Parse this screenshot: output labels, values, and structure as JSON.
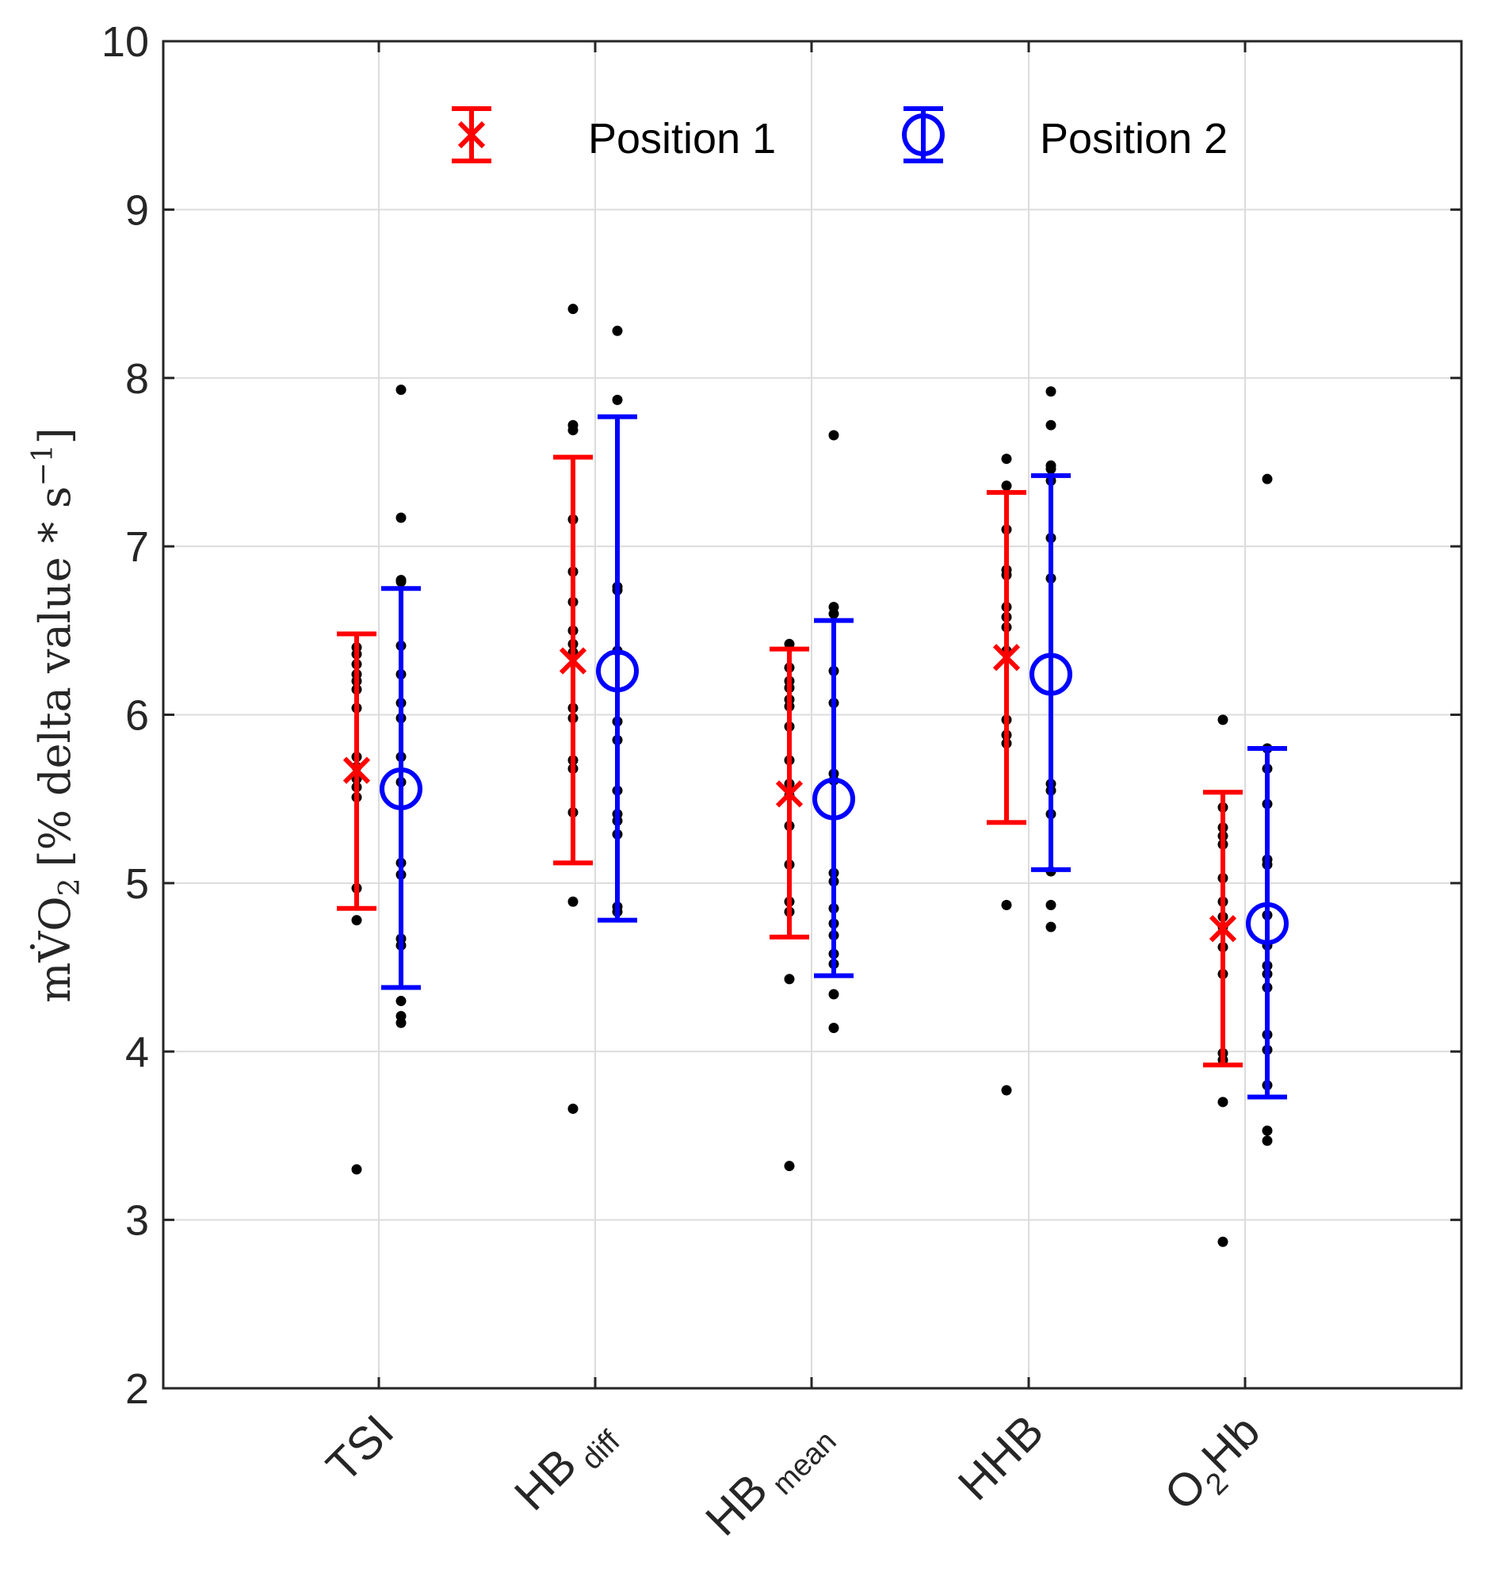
{
  "chart_data": {
    "type": "scatter",
    "title": "",
    "xlabel": "",
    "ylabel": {
      "main": "mV̇O",
      "sub": "2",
      "unit": "[% delta value * s",
      "sup": "−1",
      "close": "]"
    },
    "ylim": [
      2,
      10
    ],
    "yticks": [
      "2",
      "3",
      "4",
      "5",
      "6",
      "7",
      "8",
      "9",
      "10"
    ],
    "grid": true,
    "legend_position": "top",
    "categories": [
      {
        "main": "TSI",
        "sub": ""
      },
      {
        "main": "HB",
        "sub": "diff"
      },
      {
        "main": "HB",
        "sub": "mean"
      },
      {
        "main": "HHB",
        "sub": ""
      },
      {
        "main": "O",
        "sub": "2",
        "rest": "Hb"
      }
    ],
    "series": [
      {
        "name": "Position 1",
        "color": "#ff0000",
        "marker": "x",
        "mean": [
          5.67,
          6.32,
          5.53,
          6.34,
          4.73
        ],
        "lower": [
          4.85,
          5.12,
          4.68,
          5.36,
          3.92
        ],
        "upper": [
          6.48,
          7.53,
          6.39,
          7.32,
          5.54
        ],
        "points": [
          [
            3.3,
            4.78,
            4.97,
            5.51,
            5.57,
            5.62,
            5.69,
            5.75,
            6.04,
            6.15,
            6.2,
            6.24,
            6.3,
            6.36,
            6.4
          ],
          [
            3.66,
            4.89,
            5.42,
            5.68,
            5.73,
            5.98,
            6.04,
            6.37,
            6.42,
            6.5,
            6.67,
            6.85,
            7.16,
            7.69,
            7.72,
            8.41
          ],
          [
            3.32,
            4.43,
            4.83,
            4.89,
            5.11,
            5.34,
            5.52,
            5.59,
            5.73,
            5.93,
            6.05,
            6.09,
            6.16,
            6.2,
            6.28,
            6.42
          ],
          [
            3.77,
            4.87,
            5.83,
            5.88,
            5.97,
            6.38,
            6.52,
            6.58,
            6.64,
            6.83,
            6.86,
            7.1,
            7.36,
            7.52
          ],
          [
            2.87,
            3.7,
            3.95,
            3.99,
            4.46,
            4.62,
            4.74,
            4.8,
            4.89,
            5.03,
            5.23,
            5.28,
            5.33,
            5.45,
            5.97
          ]
        ]
      },
      {
        "name": "Position 2",
        "color": "#0000ff",
        "marker": "o",
        "mean": [
          5.56,
          6.26,
          5.5,
          6.24,
          4.76
        ],
        "lower": [
          4.38,
          4.78,
          4.45,
          5.08,
          3.73
        ],
        "upper": [
          6.75,
          7.77,
          6.56,
          7.42,
          5.8
        ],
        "points": [
          [
            4.17,
            4.21,
            4.3,
            4.63,
            4.67,
            5.05,
            5.12,
            5.6,
            5.75,
            5.98,
            6.07,
            6.24,
            6.41,
            6.79,
            6.8,
            7.17,
            7.93
          ],
          [
            4.83,
            4.86,
            5.29,
            5.37,
            5.41,
            5.55,
            5.85,
            5.96,
            6.38,
            6.74,
            6.76,
            7.87,
            8.28
          ],
          [
            4.14,
            4.34,
            4.52,
            4.58,
            4.69,
            4.76,
            4.85,
            5.01,
            5.06,
            5.61,
            5.65,
            6.07,
            6.26,
            6.6,
            6.64,
            7.66
          ],
          [
            4.74,
            4.87,
            5.07,
            5.41,
            5.55,
            5.59,
            6.81,
            7.05,
            7.39,
            7.46,
            7.48,
            7.72,
            7.92
          ],
          [
            3.47,
            3.53,
            3.8,
            4.01,
            4.1,
            4.38,
            4.46,
            4.51,
            4.63,
            4.81,
            5.11,
            5.14,
            5.47,
            5.68,
            5.8,
            7.4
          ]
        ]
      }
    ]
  }
}
